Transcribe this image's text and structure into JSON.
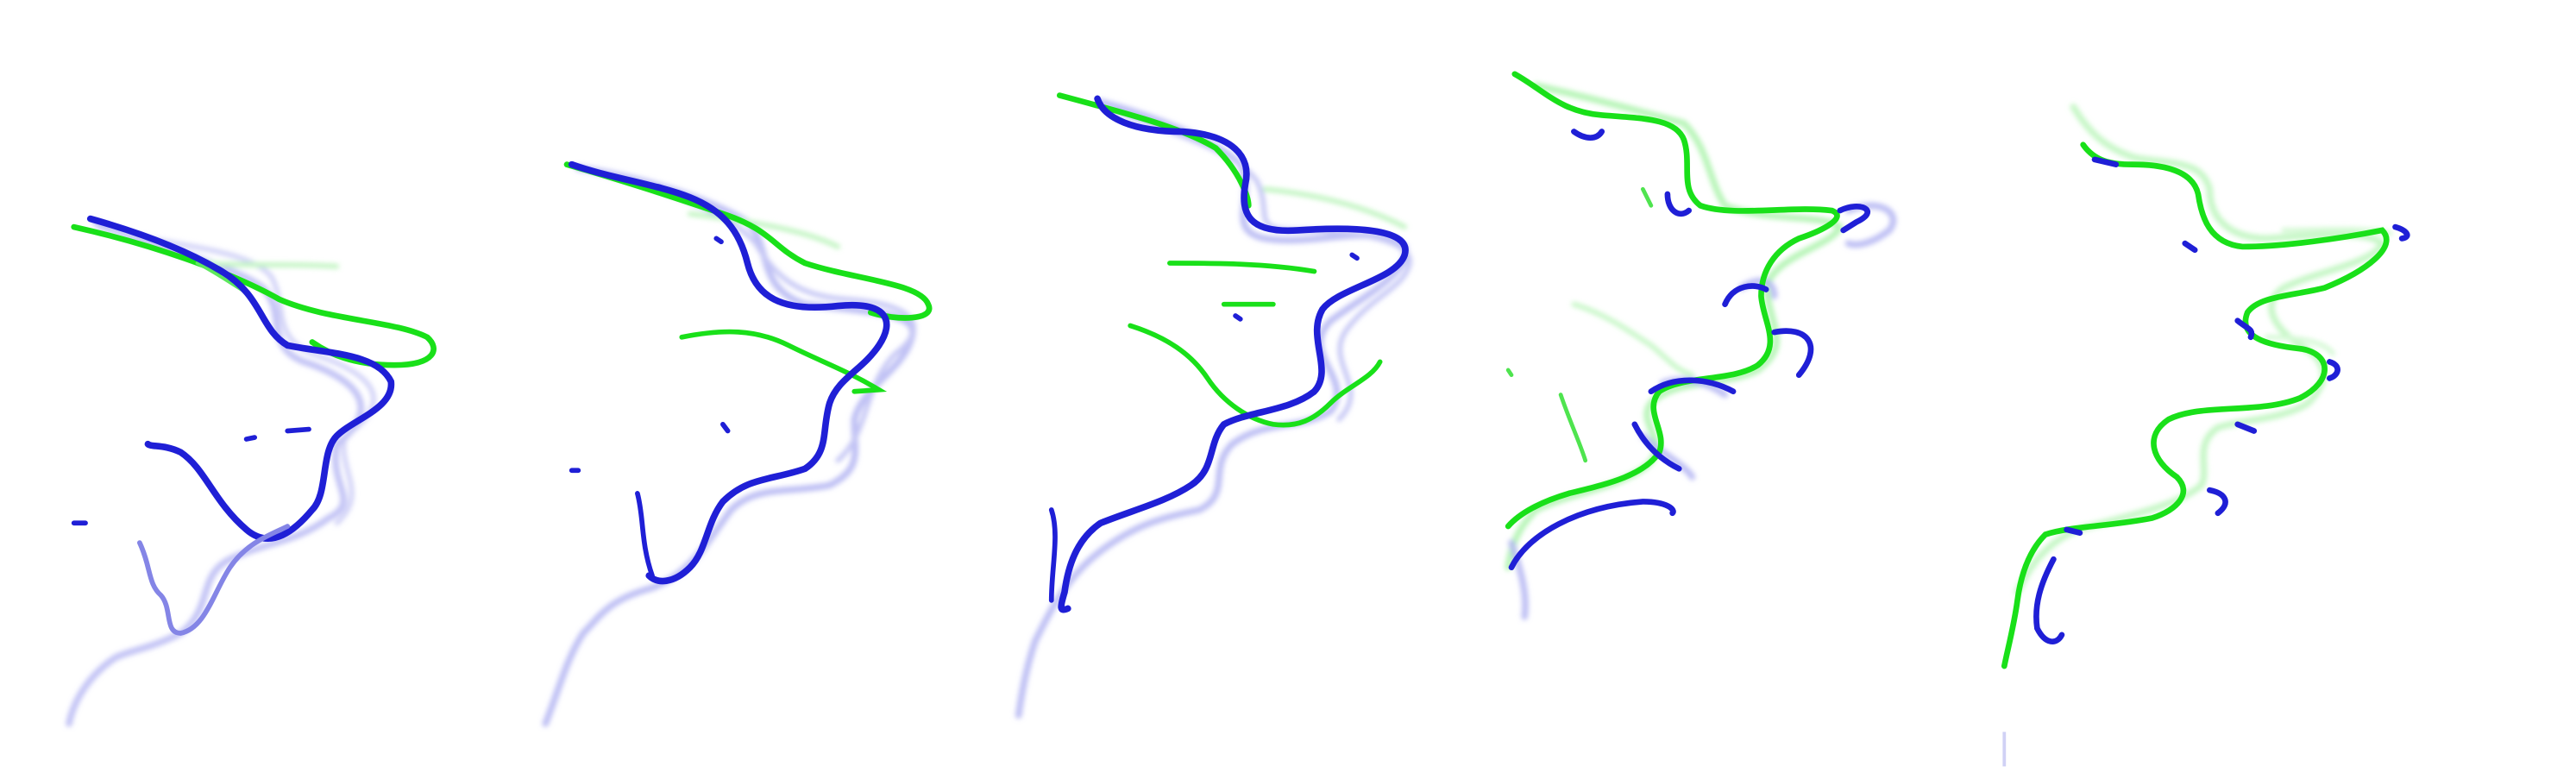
{
  "panels": [
    {
      "id": "panel-1"
    },
    {
      "id": "panel-2"
    },
    {
      "id": "panel-3"
    },
    {
      "id": "panel-4"
    },
    {
      "id": "panel-5"
    }
  ],
  "colors": {
    "blue": "#1f1fd6",
    "blue_faint": "#a9aaf0",
    "green": "#19e019",
    "green_faint": "#b8f5b8",
    "background": "#ffffff"
  }
}
